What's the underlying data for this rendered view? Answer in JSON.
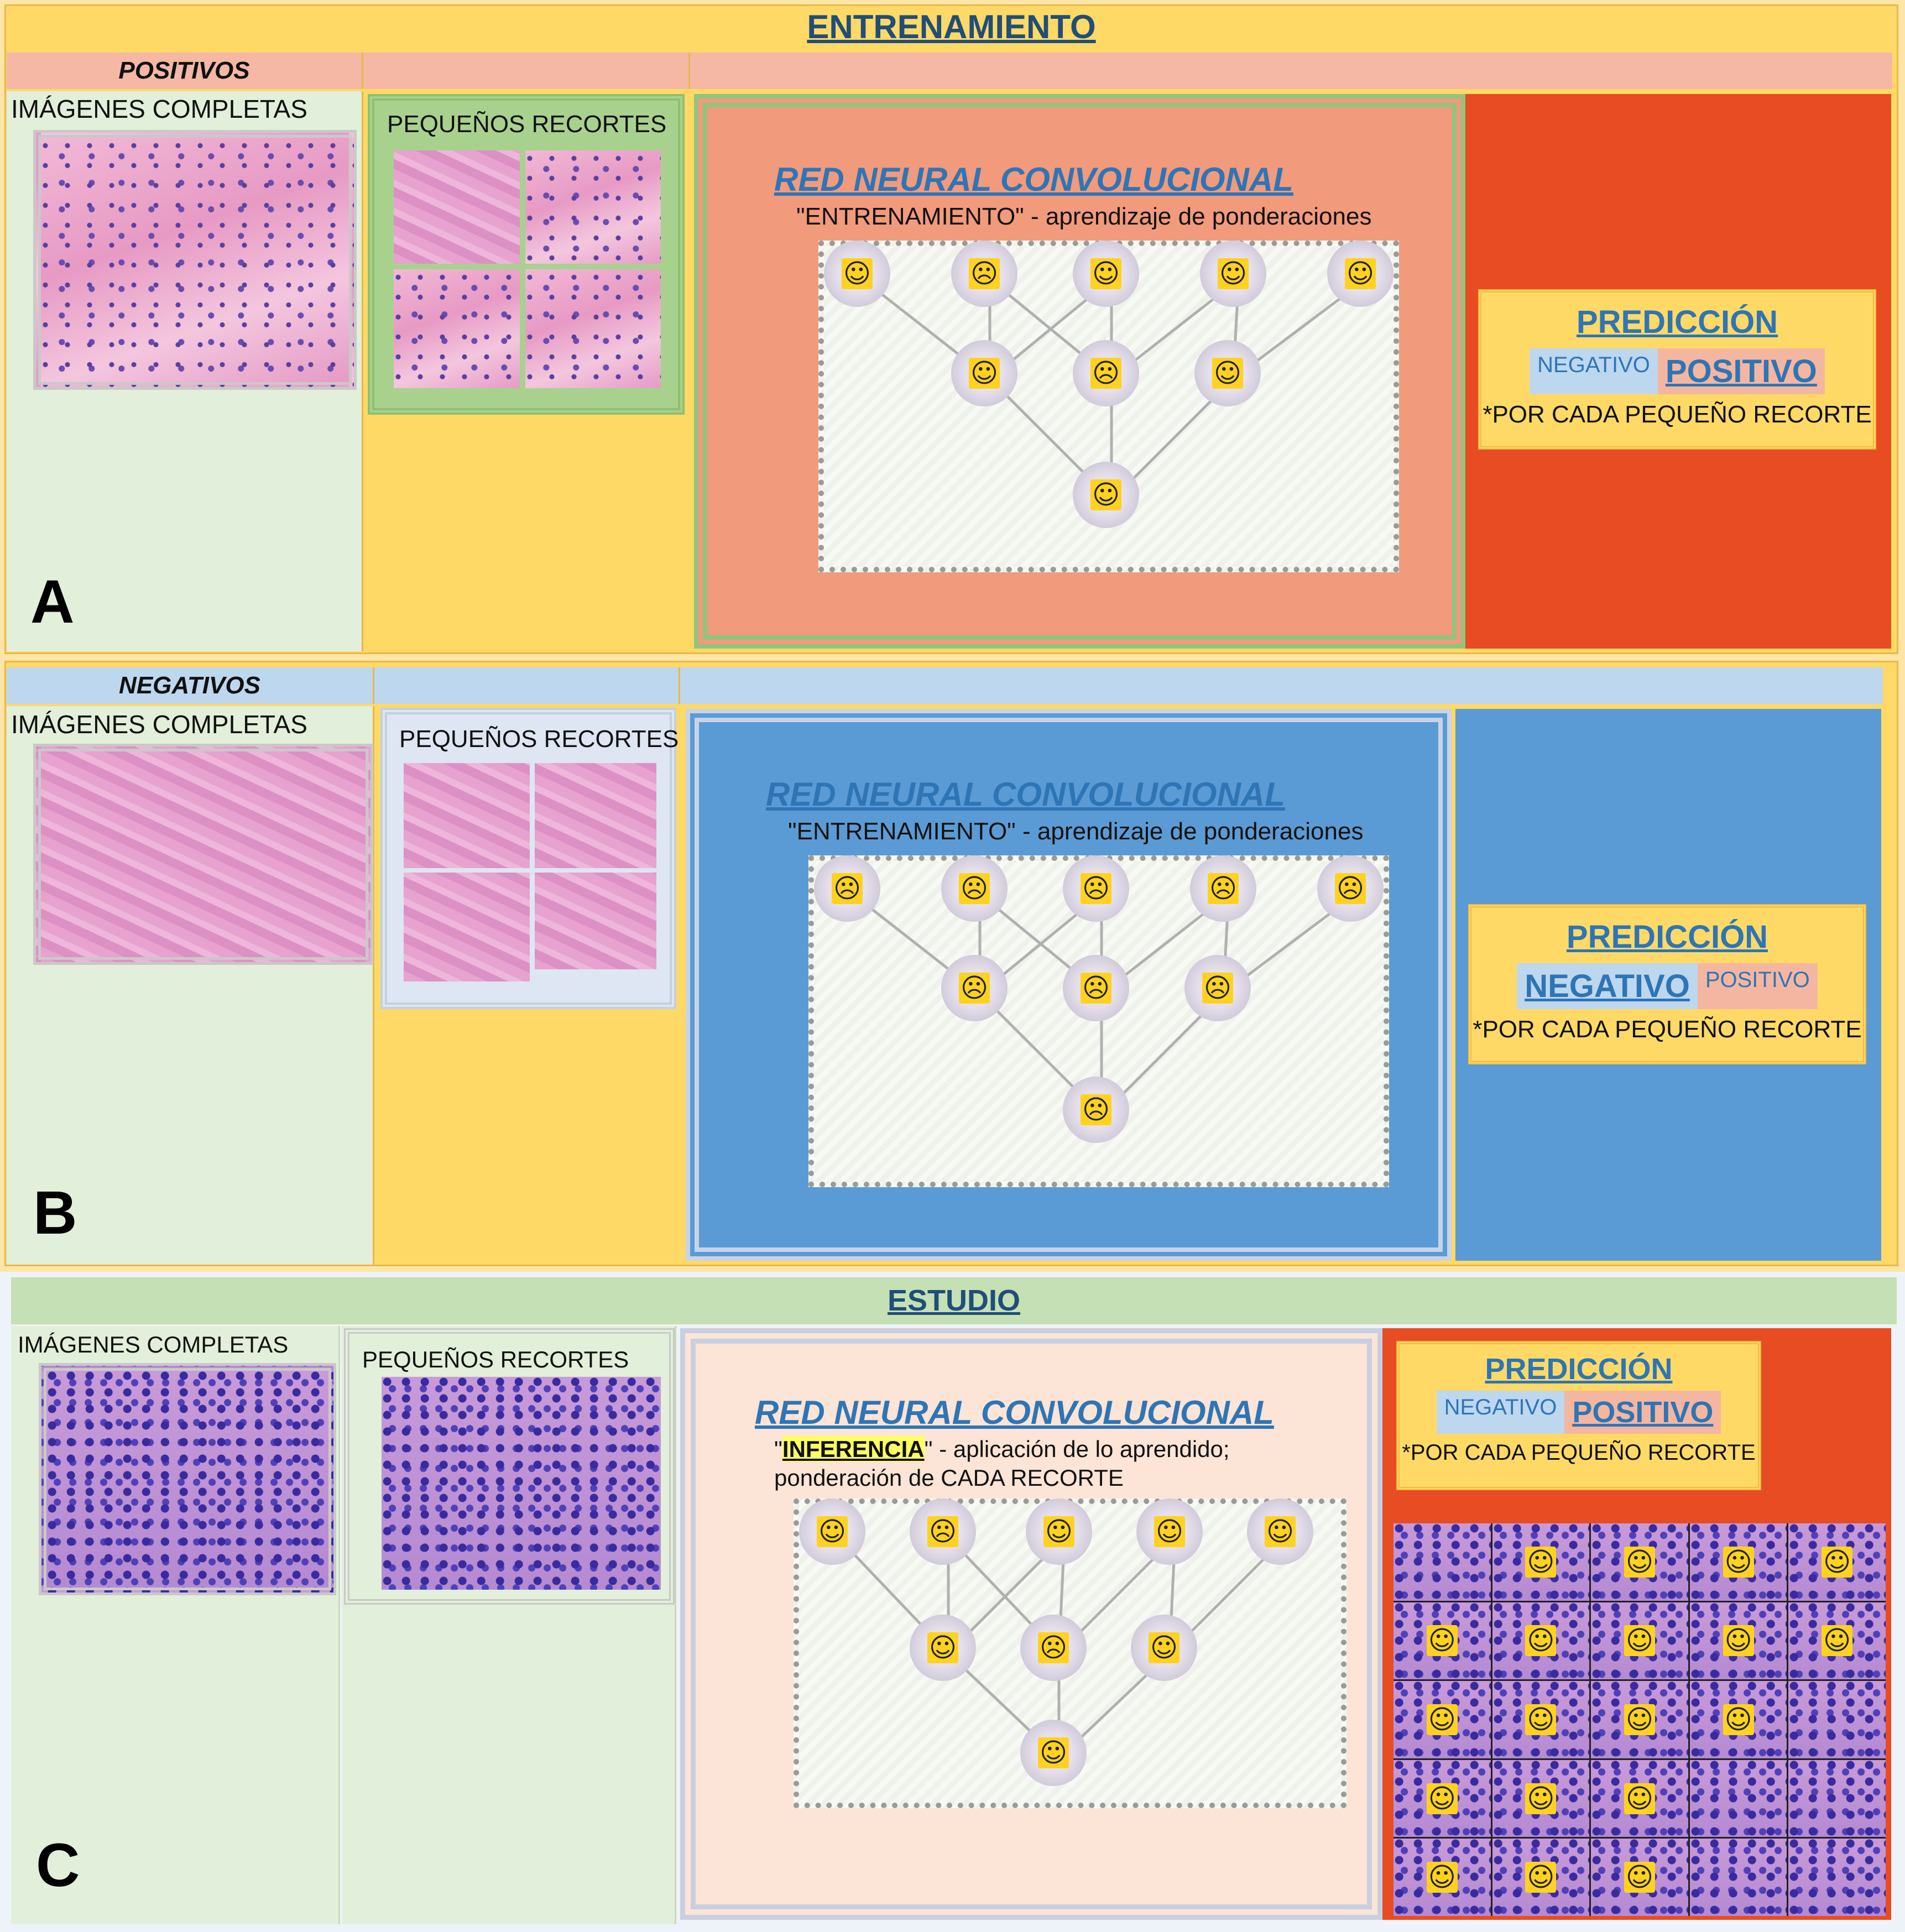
{
  "training_header": "ENTRENAMIENTO",
  "study_header": "ESTUDIO",
  "panels": {
    "A": {
      "letter": "A",
      "category": "POSITIVOS",
      "full_images": "IMÁGENES COMPLETAS",
      "crops": "PEQUEÑOS RECORTES",
      "cnn_title": "RED NEURAL CONVOLUCIONAL",
      "cnn_sub": "\"ENTRENAMIENTO\" - aprendizaje de ponderaciones",
      "pred_title": "PREDICCIÓN",
      "neg": "NEGATIVO",
      "pos": "POSITIVO",
      "note": "*POR CADA PEQUEÑO RECORTE",
      "highlight": "positive",
      "faces": [
        "happy",
        "sad",
        "happy",
        "happy",
        "happy",
        "happy",
        "sad",
        "happy",
        "happy"
      ]
    },
    "B": {
      "letter": "B",
      "category": "NEGATIVOS",
      "full_images": "IMÁGENES COMPLETAS",
      "crops": "PEQUEÑOS RECORTES",
      "cnn_title": "RED NEURAL CONVOLUCIONAL",
      "cnn_sub": "\"ENTRENAMIENTO\" - aprendizaje de ponderaciones",
      "pred_title": "PREDICCIÓN",
      "neg": "NEGATIVO",
      "pos": "POSITIVO",
      "note": "*POR CADA PEQUEÑO RECORTE",
      "highlight": "negative",
      "faces": [
        "sad",
        "sad",
        "sad",
        "sad",
        "sad",
        "sad",
        "sad",
        "sad",
        "sad"
      ]
    },
    "C": {
      "letter": "C",
      "full_images": "IMÁGENES COMPLETAS",
      "crops": "PEQUEÑOS RECORTES",
      "cnn_title": "RED NEURAL CONVOLUCIONAL",
      "cnn_sub_quote_open": "\"",
      "cnn_sub_key": "INFERENCIA",
      "cnn_sub_rest": "\" - aplicación de lo aprendido;",
      "cnn_sub2": "ponderación de CADA RECORTE",
      "pred_title": "PREDICCIÓN",
      "neg": "NEGATIVO",
      "pos": "POSITIVO",
      "note": "*POR CADA PEQUEÑO RECORTE",
      "highlight": "positive",
      "faces": [
        "happy",
        "sad",
        "happy",
        "happy",
        "happy",
        "happy",
        "sad",
        "happy",
        "happy"
      ],
      "grid": [
        [
          "none",
          "happy",
          "happy",
          "happy",
          "happy"
        ],
        [
          "happy",
          "happy",
          "happy",
          "happy",
          "happy"
        ],
        [
          "happy",
          "happy",
          "happy",
          "happy",
          "none"
        ],
        [
          "happy",
          "happy",
          "happy",
          "none",
          "none"
        ],
        [
          "happy",
          "happy",
          "happy",
          "none",
          "none"
        ]
      ]
    }
  },
  "colors": {
    "yellow": "#ffd966",
    "salmon": "#f4b8a5",
    "orange_red": "#e84c22",
    "light_blue": "#bdd7ee",
    "blue": "#5b9bd5",
    "light_green": "#e2efda",
    "green_header": "#c5e0b4",
    "peach": "#fce4d6"
  },
  "icons": {
    "happy": "smiley-happy-icon",
    "sad": "smiley-sad-icon"
  }
}
